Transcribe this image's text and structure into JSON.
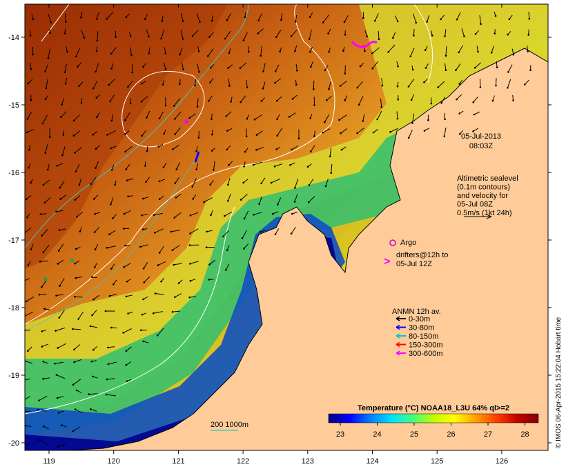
{
  "map": {
    "x_ticks": [
      "119",
      "120",
      "121",
      "122",
      "123",
      "124",
      "125",
      "126"
    ],
    "y_ticks": [
      "-14",
      "-15",
      "-16",
      "-17",
      "-18",
      "-19",
      "-20"
    ],
    "date_label": "05-Jul-2013",
    "time_label": "08:03Z",
    "altimetry_lines": [
      "Altimetric sealevel",
      "(0.1m contours)",
      "and velocity for",
      "05-Jul 08Z",
      "0.5m/s (1kt 24h)"
    ],
    "argo_label": "Argo",
    "drifter_lines": [
      "drifters@12h to",
      "05-Jul 12Z"
    ],
    "anmn_title": "ANMN 12h av.",
    "anmn_legend": [
      {
        "label": "0-30m",
        "color": "#000000"
      },
      {
        "label": "30-80m",
        "color": "#0000ff"
      },
      {
        "label": "80-150m",
        "color": "#00c8c8"
      },
      {
        "label": "150-300m",
        "color": "#ff0000"
      },
      {
        "label": "300-600m",
        "color": "#ff00ff"
      }
    ],
    "isobath_label": "200  1000m",
    "colorbar_title": "Temperature (°C) NOAA18_L3U 64% ql>=2",
    "colorbar_ticks": [
      "23",
      "24",
      "25",
      "26",
      "27",
      "28"
    ],
    "colorbar_colors": [
      "#000080",
      "#0000ff",
      "#0080ff",
      "#00e0ff",
      "#40ff80",
      "#c0ff00",
      "#ffff00",
      "#ffa000",
      "#ff4000",
      "#c00000",
      "#800000"
    ],
    "credit": "© IMOS 06-Apr-2015 15:22:04 Hobart time",
    "colors": {
      "land": "#ffcc99",
      "argo": "#cc00cc",
      "drifter": "#ff00ff",
      "contour": "#ffffff",
      "isobath_200": "#40c8c8"
    }
  }
}
